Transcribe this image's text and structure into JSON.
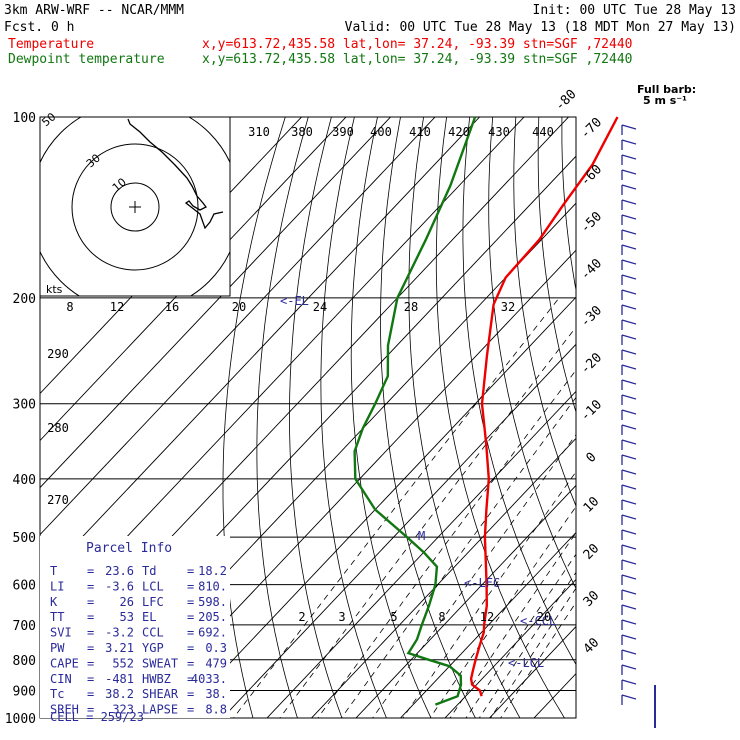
{
  "header": {
    "title": "3km ARW-WRF -- NCAR/MMM",
    "init": "Init: 00 UTC Tue 28 May 13",
    "fcst": "Fcst.    0 h",
    "valid": "Valid: 00 UTC Tue 28 May 13 (18 MDT Mon 27 May 13)",
    "temp_label": "Temperature",
    "dew_label": "Dewpoint temperature",
    "location": "x,y=613.72,435.58   lat,lon= 37.24, -93.39   stn=SGF ,72440"
  },
  "colors": {
    "temperature": "#ee0000",
    "dewpoint": "#117711",
    "barbs": "#2a2a9a",
    "parcel": "#2a2a9a"
  },
  "barb_key": {
    "line1": "Full barb:",
    "line2": "5 m s⁻¹"
  },
  "hodograph": {
    "units": "kts",
    "ring_labels": [
      "50",
      "30",
      "10"
    ]
  },
  "skewt_labels": {
    "isotherms": [
      "-80",
      "-70",
      "-60",
      "-50",
      "-40",
      "-30",
      "-20",
      "-10",
      "0",
      "10",
      "20",
      "30",
      "40"
    ],
    "theta_top": [
      "310",
      "380",
      "390",
      "400",
      "410",
      "420",
      "430",
      "440"
    ],
    "theta_left": [
      "290",
      "280",
      "270"
    ],
    "mixing_ratio_top": [
      "8",
      "12",
      "16",
      "20",
      "24",
      "28",
      "32"
    ],
    "mixing_ratio_low": [
      "2",
      "3",
      "5",
      "8",
      "12",
      "20"
    ],
    "levels": [
      "EL",
      "LFC",
      "CCL",
      "LCL"
    ],
    "marker": "M"
  },
  "parcel_info": {
    "title": "Parcel Info",
    "rows": [
      [
        "T",
        "23.6",
        "Td",
        "18.2"
      ],
      [
        "LI",
        "-3.6",
        "LCL",
        "810."
      ],
      [
        "K",
        "26",
        "LFC",
        "598."
      ],
      [
        "TT",
        "53",
        "EL",
        "205."
      ],
      [
        "SVI",
        "-3.2",
        "CCL",
        "692."
      ],
      [
        "PW",
        "3.21",
        "YGP",
        "0.3"
      ],
      [
        "CAPE",
        "552",
        "SWEAT",
        "479"
      ],
      [
        "CIN",
        "-481",
        "HWBZ",
        "4033."
      ],
      [
        "Tc",
        "38.2",
        "SHEAR",
        "38."
      ],
      [
        "SREH",
        "323",
        "LAPSE",
        "8.8"
      ]
    ],
    "cell": "CELL = 259/23"
  },
  "chart_data": {
    "type": "line",
    "subtype": "skew-T log-P sounding",
    "y_axis": {
      "scale": "log",
      "ticks": [
        100,
        200,
        300,
        400,
        500,
        600,
        700,
        800,
        900,
        1000
      ],
      "units": "hPa"
    },
    "isotherm_range_c": [
      -80,
      40
    ],
    "series": [
      {
        "name": "Temperature",
        "units": "C",
        "points": [
          {
            "p": 920,
            "t": 23.6
          },
          {
            "p": 900,
            "t": 22.0
          },
          {
            "p": 880,
            "t": 19.0
          },
          {
            "p": 860,
            "t": 17.5
          },
          {
            "p": 830,
            "t": 16.0
          },
          {
            "p": 800,
            "t": 14.5
          },
          {
            "p": 760,
            "t": 12.5
          },
          {
            "p": 720,
            "t": 10.5
          },
          {
            "p": 700,
            "t": 9.0
          },
          {
            "p": 650,
            "t": 5.5
          },
          {
            "p": 600,
            "t": 1.0
          },
          {
            "p": 550,
            "t": -4.0
          },
          {
            "p": 500,
            "t": -9.5
          },
          {
            "p": 450,
            "t": -15.0
          },
          {
            "p": 400,
            "t": -21.0
          },
          {
            "p": 350,
            "t": -29.0
          },
          {
            "p": 300,
            "t": -38.5
          },
          {
            "p": 250,
            "t": -47.5
          },
          {
            "p": 205,
            "t": -57.0
          },
          {
            "p": 185,
            "t": -60.0
          },
          {
            "p": 160,
            "t": -60.5
          },
          {
            "p": 140,
            "t": -62.5
          },
          {
            "p": 120,
            "t": -64.5
          },
          {
            "p": 100,
            "t": -69.0
          }
        ]
      },
      {
        "name": "Dewpoint temperature",
        "units": "C",
        "points": [
          {
            "p": 950,
            "t": 15.0
          },
          {
            "p": 920,
            "t": 18.2
          },
          {
            "p": 880,
            "t": 16.5
          },
          {
            "p": 850,
            "t": 14.5
          },
          {
            "p": 820,
            "t": 10.0
          },
          {
            "p": 800,
            "t": 4.0
          },
          {
            "p": 780,
            "t": -2.0
          },
          {
            "p": 740,
            "t": -3.0
          },
          {
            "p": 700,
            "t": -5.0
          },
          {
            "p": 650,
            "t": -7.5
          },
          {
            "p": 600,
            "t": -10.5
          },
          {
            "p": 560,
            "t": -14.0
          },
          {
            "p": 530,
            "t": -20.0
          },
          {
            "p": 500,
            "t": -27.0
          },
          {
            "p": 450,
            "t": -40.0
          },
          {
            "p": 400,
            "t": -51.0
          },
          {
            "p": 360,
            "t": -57.0
          },
          {
            "p": 330,
            "t": -60.0
          },
          {
            "p": 300,
            "t": -62.5
          },
          {
            "p": 270,
            "t": -65.5
          },
          {
            "p": 240,
            "t": -72.0
          },
          {
            "p": 200,
            "t": -80.0
          },
          {
            "p": 160,
            "t": -86.0
          },
          {
            "p": 130,
            "t": -92.0
          },
          {
            "p": 100,
            "t": -101.0
          }
        ]
      }
    ],
    "levels_hpa": {
      "EL": 205,
      "LFC": 598,
      "CCL": 692,
      "LCL": 810
    }
  }
}
